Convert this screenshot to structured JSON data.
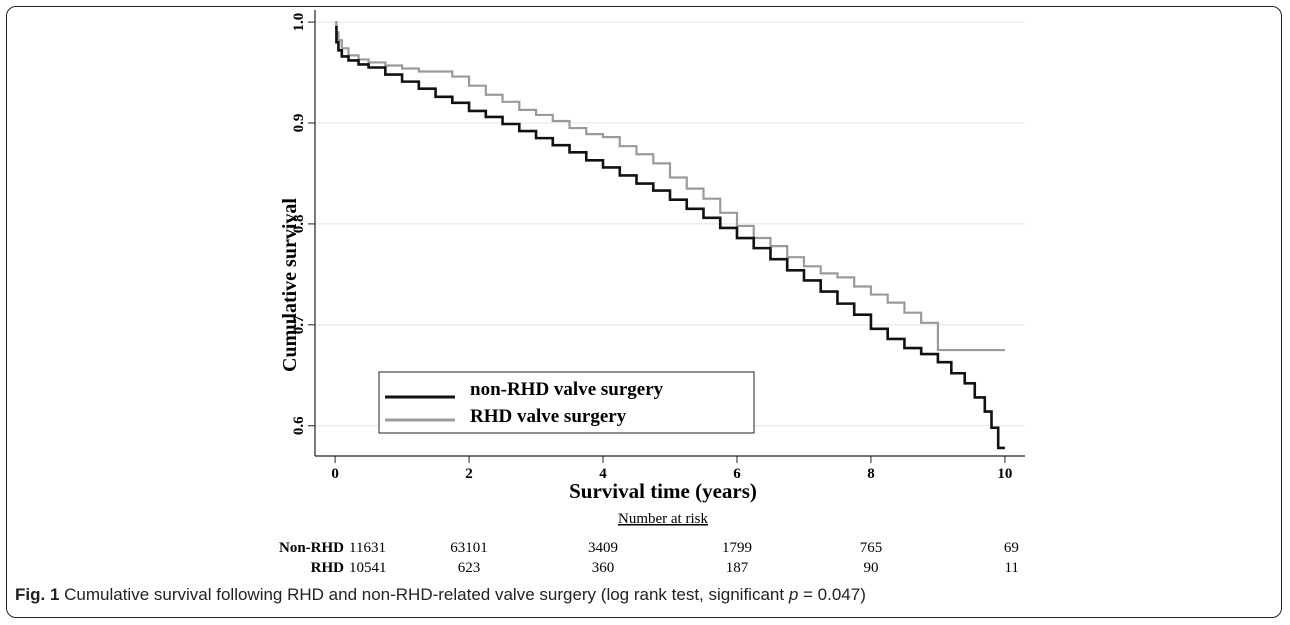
{
  "chart_data": {
    "type": "line",
    "xlabel": "Survival time (years)",
    "ylabel": "Cumulative survival",
    "xlim": [
      -0.3,
      10.3
    ],
    "ylim": [
      0.57,
      1.01
    ],
    "x_ticks": [
      "0",
      "2",
      "4",
      "6",
      "8",
      "10"
    ],
    "y_ticks": [
      "0.6",
      "0.7",
      "0.8",
      "0.9",
      "1.0"
    ],
    "grid": "horizontal",
    "legend_placement": "bottom-left",
    "series": [
      {
        "name": "non-RHD valve surgery",
        "color": "#111111",
        "x": [
          0,
          0.02,
          0.05,
          0.1,
          0.2,
          0.35,
          0.5,
          0.75,
          1.0,
          1.25,
          1.5,
          1.75,
          2.0,
          2.25,
          2.5,
          2.75,
          3.0,
          3.25,
          3.5,
          3.75,
          4.0,
          4.25,
          4.5,
          4.75,
          5.0,
          5.25,
          5.5,
          5.75,
          6.0,
          6.25,
          6.5,
          6.75,
          7.0,
          7.25,
          7.5,
          7.75,
          8.0,
          8.25,
          8.5,
          8.75,
          9.0,
          9.2,
          9.4,
          9.55,
          9.7,
          9.8,
          9.9,
          10.0
        ],
        "y": [
          0.995,
          0.98,
          0.972,
          0.966,
          0.962,
          0.958,
          0.955,
          0.948,
          0.941,
          0.934,
          0.926,
          0.92,
          0.912,
          0.906,
          0.899,
          0.892,
          0.885,
          0.878,
          0.871,
          0.863,
          0.856,
          0.848,
          0.84,
          0.833,
          0.824,
          0.815,
          0.806,
          0.796,
          0.786,
          0.776,
          0.765,
          0.754,
          0.744,
          0.733,
          0.721,
          0.71,
          0.696,
          0.686,
          0.677,
          0.671,
          0.663,
          0.652,
          0.642,
          0.628,
          0.614,
          0.598,
          0.578,
          0.578
        ]
      },
      {
        "name": "RHD valve surgery",
        "color": "#9a9a9a",
        "x": [
          0,
          0.02,
          0.05,
          0.1,
          0.2,
          0.35,
          0.5,
          0.75,
          1.0,
          1.25,
          1.5,
          1.75,
          2.0,
          2.25,
          2.5,
          2.75,
          3.0,
          3.25,
          3.5,
          3.75,
          4.0,
          4.25,
          4.5,
          4.75,
          5.0,
          5.25,
          5.5,
          5.75,
          6.0,
          6.25,
          6.5,
          6.75,
          7.0,
          7.25,
          7.5,
          7.75,
          8.0,
          8.25,
          8.5,
          8.75,
          8.85,
          9.0,
          9.5,
          10.0
        ],
        "y": [
          1.0,
          0.99,
          0.982,
          0.974,
          0.967,
          0.963,
          0.96,
          0.957,
          0.954,
          0.951,
          0.951,
          0.946,
          0.937,
          0.928,
          0.921,
          0.913,
          0.908,
          0.902,
          0.895,
          0.889,
          0.886,
          0.877,
          0.869,
          0.86,
          0.846,
          0.835,
          0.825,
          0.811,
          0.798,
          0.786,
          0.778,
          0.767,
          0.758,
          0.751,
          0.747,
          0.738,
          0.73,
          0.722,
          0.712,
          0.702,
          0.702,
          0.675,
          0.675,
          0.675
        ]
      }
    ]
  },
  "risk_table": {
    "title": "Number at risk",
    "rows": [
      {
        "label": "Non-RHD",
        "values": [
          "11631",
          "63101",
          "3409",
          "1799",
          "765",
          "69"
        ]
      },
      {
        "label": "RHD",
        "values": [
          "10541",
          "623",
          "360",
          "187",
          "90",
          "11"
        ]
      }
    ]
  },
  "caption": {
    "fig_label": "Fig. 1",
    "text_main": " Cumulative survival following RHD and non-RHD-related valve surgery (log rank test, significant ",
    "p_symbol": "p",
    "p_value": " = 0.047)"
  }
}
